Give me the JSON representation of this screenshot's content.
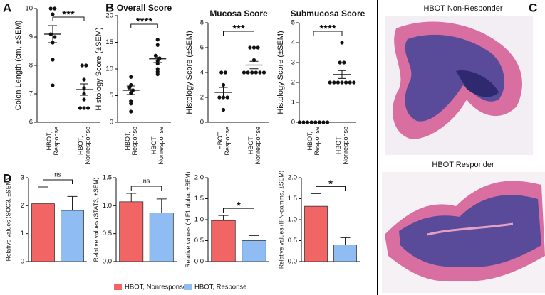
{
  "panel_labels": [
    "A",
    "B",
    "C",
    "D"
  ],
  "chart_data": [
    {
      "type": "scatter",
      "ylabel": "Colon Length (cm, ±SEM)",
      "categories": [
        "HBOT,\nResponse",
        "HBOT,\nNonresponse"
      ],
      "groups": [
        {
          "values": [
            10,
            10,
            9.8,
            9.1,
            9.0,
            8.8,
            8.2,
            7.3
          ],
          "mean": 9.1,
          "sem": 0.3
        },
        {
          "values": [
            8.0,
            8.0,
            7.5,
            7.2,
            7.0,
            6.8,
            6.5,
            6.5,
            6.5
          ],
          "mean": 7.15,
          "sem": 0.2
        }
      ],
      "significance": "***",
      "ylim": [
        6,
        10
      ],
      "yticks": [
        6,
        7,
        8,
        9,
        10
      ]
    },
    {
      "type": "scatter",
      "title": "Overall Score",
      "ylabel": "Histology Score (±SEM)",
      "categories": [
        "HBOT,\nResponse",
        "HBOT\nNonresponse"
      ],
      "groups": [
        {
          "values": [
            8.5,
            7,
            6.5,
            6,
            5.5,
            4,
            3.5,
            2
          ],
          "mean": 6.0,
          "sem": 0.8
        },
        {
          "values": [
            15.5,
            14.5,
            12.5,
            12,
            11.5,
            11,
            10,
            9.5,
            9
          ],
          "mean": 11.9,
          "sem": 0.7
        }
      ],
      "significance": "****",
      "ylim": [
        0,
        20
      ],
      "yticks": [
        0,
        5,
        10,
        15,
        20
      ]
    },
    {
      "type": "scatter",
      "title": "Mucosa Score",
      "ylabel": "Histology Score (±SEM)",
      "categories": [
        "HBOT\nResponse",
        "HBOT\nNonresponse"
      ],
      "groups": [
        {
          "values": [
            4,
            4,
            3,
            2,
            2,
            2,
            1
          ],
          "mean": 2.4,
          "sem": 0.4
        },
        {
          "values": [
            6,
            6,
            6,
            5,
            4,
            4,
            4,
            4,
            4,
            4
          ],
          "mean": 4.6,
          "sem": 0.3
        }
      ],
      "significance": "***",
      "ylim": [
        0,
        8
      ],
      "yticks": [
        0,
        2,
        4,
        6,
        8
      ]
    },
    {
      "type": "scatter",
      "title": "Submucosa Score",
      "ylabel": "Histology Score (±SEM)",
      "categories": [
        "HBOT,\nResponse",
        "HBOT\nNonresponse"
      ],
      "groups": [
        {
          "values": [
            0,
            0,
            0,
            0,
            0,
            0,
            0,
            0
          ],
          "mean": 0,
          "sem": 0
        },
        {
          "values": [
            4,
            3,
            3,
            2,
            2,
            2,
            2,
            2,
            2,
            2
          ],
          "mean": 2.4,
          "sem": 0.2
        }
      ],
      "significance": "****",
      "ylim": [
        0,
        5
      ],
      "yticks": [
        0,
        1,
        2,
        3,
        4,
        5
      ]
    },
    {
      "type": "bar",
      "ylabel": "Relative values (SOC3, ±SEM)",
      "values": [
        2.07,
        1.83
      ],
      "errors": [
        0.6,
        0.5
      ],
      "significance": "ns",
      "ylim": [
        0,
        3
      ],
      "yticks": [
        0,
        1,
        2,
        3
      ]
    },
    {
      "type": "bar",
      "ylabel": "Relative values (STAT3, ±SEM)",
      "values": [
        1.07,
        0.87
      ],
      "errors": [
        0.15,
        0.25
      ],
      "significance": "ns",
      "ylim": [
        0,
        1.5
      ],
      "yticks": [
        {
          "value": 0,
          "label": "0.0"
        },
        0.5,
        {
          "value": 1,
          "label": "1.0"
        },
        1.5
      ]
    },
    {
      "type": "bar",
      "ylabel": "Relative values (HIF1 alpha, ±SEM)",
      "values": [
        0.98,
        0.5
      ],
      "errors": [
        0.12,
        0.12
      ],
      "significance": "*",
      "ylim": [
        0,
        2
      ],
      "yticks": [
        {
          "value": 0,
          "label": "0.0"
        },
        0.5,
        {
          "value": 1,
          "label": "1.0"
        },
        1.5,
        {
          "value": 2,
          "label": "2.0"
        }
      ]
    },
    {
      "type": "bar",
      "ylabel": "Relative values (IFN-gamma, ±SEM)",
      "values": [
        1.32,
        0.4
      ],
      "errors": [
        0.3,
        0.17
      ],
      "significance": "*",
      "ylim": [
        0,
        2
      ],
      "yticks": [
        {
          "value": 0,
          "label": "0.0"
        },
        0.5,
        {
          "value": 1,
          "label": "1.0"
        },
        1.5,
        {
          "value": 2,
          "label": "2.0"
        }
      ]
    }
  ],
  "legend": [
    {
      "name": "HBOT, Nonresponse",
      "color": "#f26565"
    },
    {
      "name": "HBOT, Response",
      "color": "#8fbcf2"
    }
  ],
  "images": [
    {
      "title": "HBOT Non-Responder"
    },
    {
      "title": "HBOT Responder"
    }
  ]
}
